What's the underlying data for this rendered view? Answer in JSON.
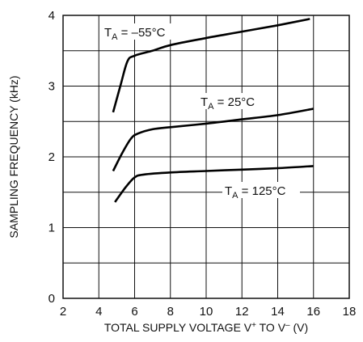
{
  "chart_data": {
    "type": "line",
    "title": "",
    "xlabel": {
      "main": "TOTAL SUPPLY VOLTAGE V",
      "sup1": "+",
      "mid": " TO V",
      "sup2": "–",
      "end": " (V)"
    },
    "ylabel": "SAMPLING FREQUENCY (kHz)",
    "xlim": [
      2,
      18
    ],
    "ylim": [
      0,
      4
    ],
    "x_ticks": [
      "2",
      "4",
      "6",
      "8",
      "10",
      "12",
      "14",
      "16",
      "18"
    ],
    "y_ticks": [
      "0",
      "1",
      "2",
      "3",
      "4"
    ],
    "grid": true,
    "series": [
      {
        "label": {
          "t": "T",
          "sub": "A",
          "rest": " = –55°C"
        },
        "x": [
          4.8,
          5.2,
          5.6,
          6.0,
          7.0,
          8.0,
          10.0,
          12.0,
          14.0,
          15.8
        ],
        "y": [
          2.63,
          3.0,
          3.35,
          3.43,
          3.5,
          3.58,
          3.68,
          3.77,
          3.86,
          3.95
        ]
      },
      {
        "label": {
          "t": "T",
          "sub": "A",
          "rest": " = 25°C"
        },
        "x": [
          4.8,
          5.3,
          5.8,
          6.2,
          7.0,
          8.0,
          10.0,
          12.0,
          14.0,
          16.0
        ],
        "y": [
          1.8,
          2.05,
          2.26,
          2.33,
          2.39,
          2.42,
          2.47,
          2.53,
          2.59,
          2.68
        ]
      },
      {
        "label": {
          "t": "T",
          "sub": "A",
          "rest": " = 125°C"
        },
        "x": [
          4.9,
          5.5,
          6.0,
          6.5,
          8.0,
          10.0,
          12.0,
          14.0,
          16.0
        ],
        "y": [
          1.36,
          1.57,
          1.71,
          1.75,
          1.78,
          1.8,
          1.82,
          1.84,
          1.87
        ]
      }
    ]
  }
}
